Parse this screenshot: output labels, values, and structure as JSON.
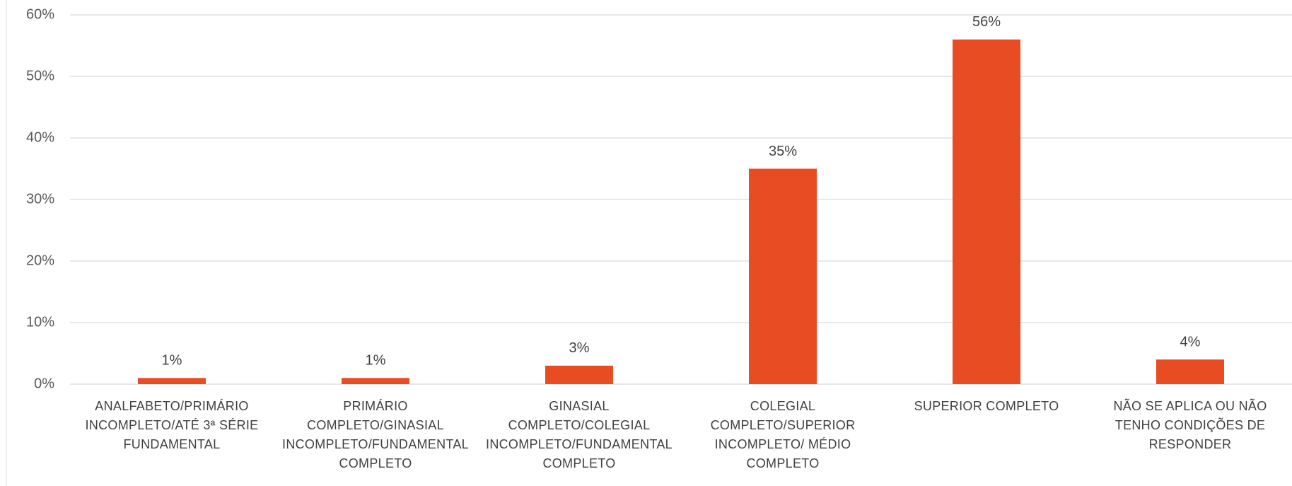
{
  "chart_data": {
    "type": "bar",
    "categories": [
      "ANALFABETO/PRIMÁRIO INCOMPLETO/ATÉ 3ª SÉRIE FUNDAMENTAL",
      "PRIMÁRIO COMPLETO/GINASIAL INCOMPLETO/FUNDAMENTAL COMPLETO",
      "GINASIAL COMPLETO/COLEGIAL INCOMPLETO/FUNDAMENTAL COMPLETO",
      "COLEGIAL COMPLETO/SUPERIOR INCOMPLETO/ MÉDIO COMPLETO",
      "SUPERIOR COMPLETO",
      "NÃO SE APLICA OU NÃO TENHO CONDIÇÕES DE RESPONDER"
    ],
    "values": [
      1,
      1,
      3,
      35,
      56,
      4
    ],
    "value_labels": [
      "1%",
      "1%",
      "3%",
      "35%",
      "56%",
      "4%"
    ],
    "color": "#e84c22",
    "ylim": [
      0,
      60
    ],
    "yticks": [
      {
        "value": 0,
        "label": "0%"
      },
      {
        "value": 10,
        "label": "10%"
      },
      {
        "value": 20,
        "label": "20%"
      },
      {
        "value": 30,
        "label": "30%"
      },
      {
        "value": 40,
        "label": "40%"
      },
      {
        "value": 50,
        "label": "50%"
      },
      {
        "value": 60,
        "label": "60%"
      }
    ],
    "grid": true
  }
}
